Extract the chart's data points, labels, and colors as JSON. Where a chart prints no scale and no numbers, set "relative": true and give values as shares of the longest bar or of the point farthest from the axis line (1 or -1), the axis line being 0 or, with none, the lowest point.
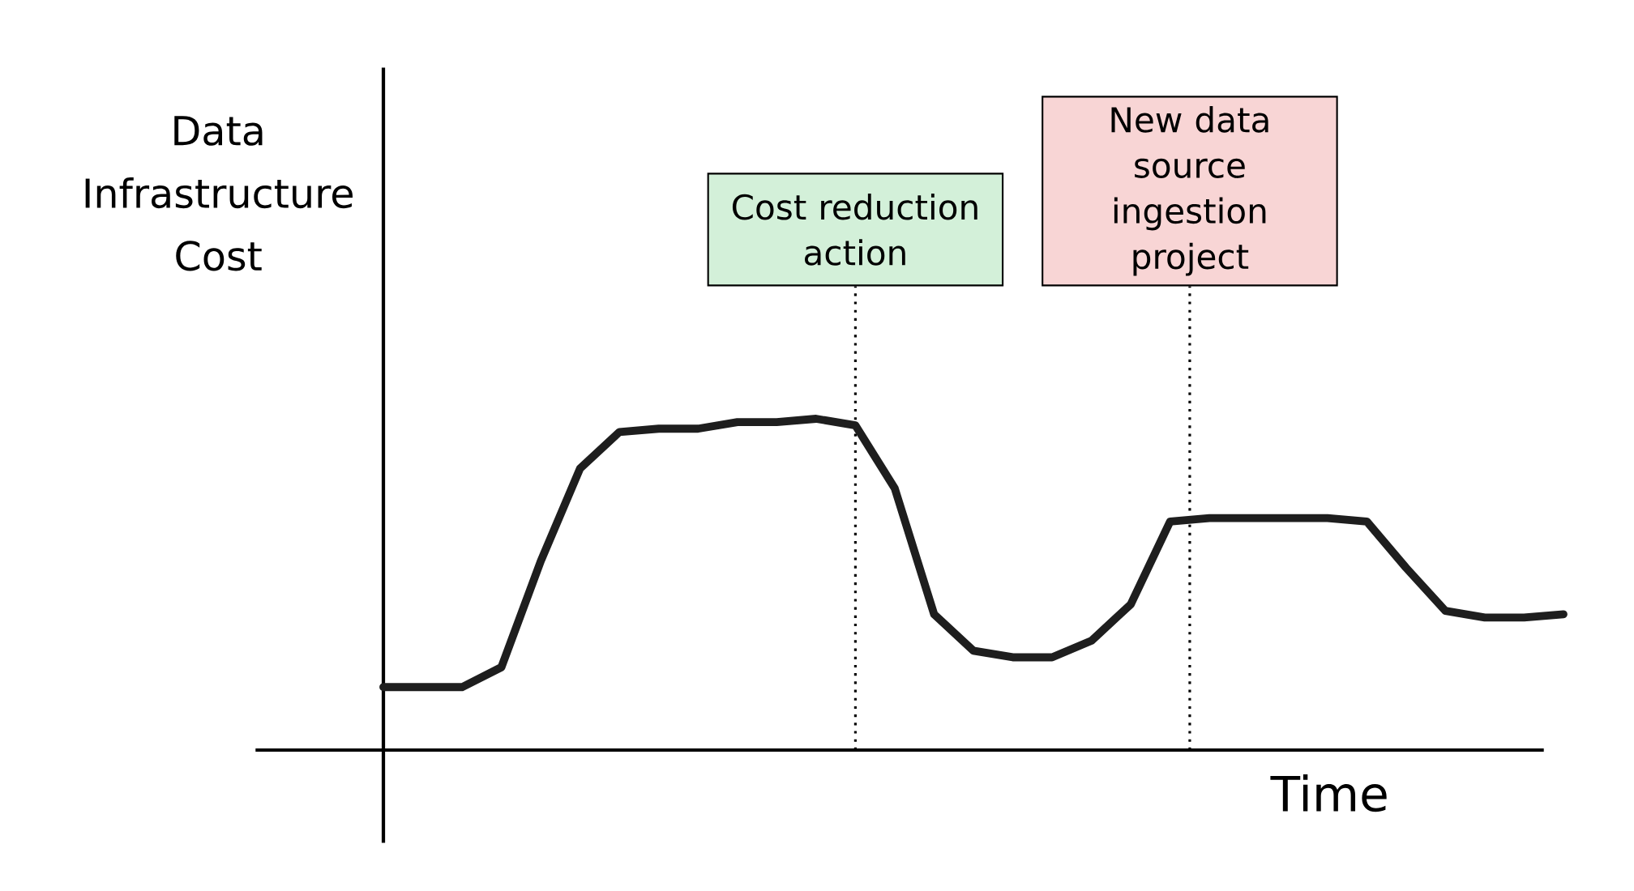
{
  "chart_data": {
    "type": "line",
    "relative": true,
    "xlabel": "Time",
    "ylabel": "Data Infrastructure Cost",
    "categories": [
      null,
      null,
      null,
      null,
      null,
      null,
      null,
      null,
      null,
      null,
      null,
      null,
      null,
      null,
      null,
      null,
      null,
      null,
      null,
      null,
      null,
      null,
      null,
      null,
      null,
      null,
      null,
      null,
      null,
      null,
      null
    ],
    "series": [
      {
        "color": "#1e1e1e",
        "marker": "none",
        "line_style": "solid",
        "values": [
          0.19,
          0.19,
          0.19,
          0.25,
          0.57,
          0.85,
          0.96,
          0.97,
          0.97,
          0.99,
          0.99,
          1.0,
          0.98,
          0.79,
          0.41,
          0.3,
          0.28,
          0.28,
          0.33,
          0.44,
          0.69,
          0.7,
          0.7,
          0.7,
          0.7,
          0.69,
          0.55,
          0.42,
          0.4,
          0.4,
          0.41
        ]
      }
    ],
    "annotations": [
      "Cost reduction action",
      "New data source ingestion project"
    ]
  }
}
